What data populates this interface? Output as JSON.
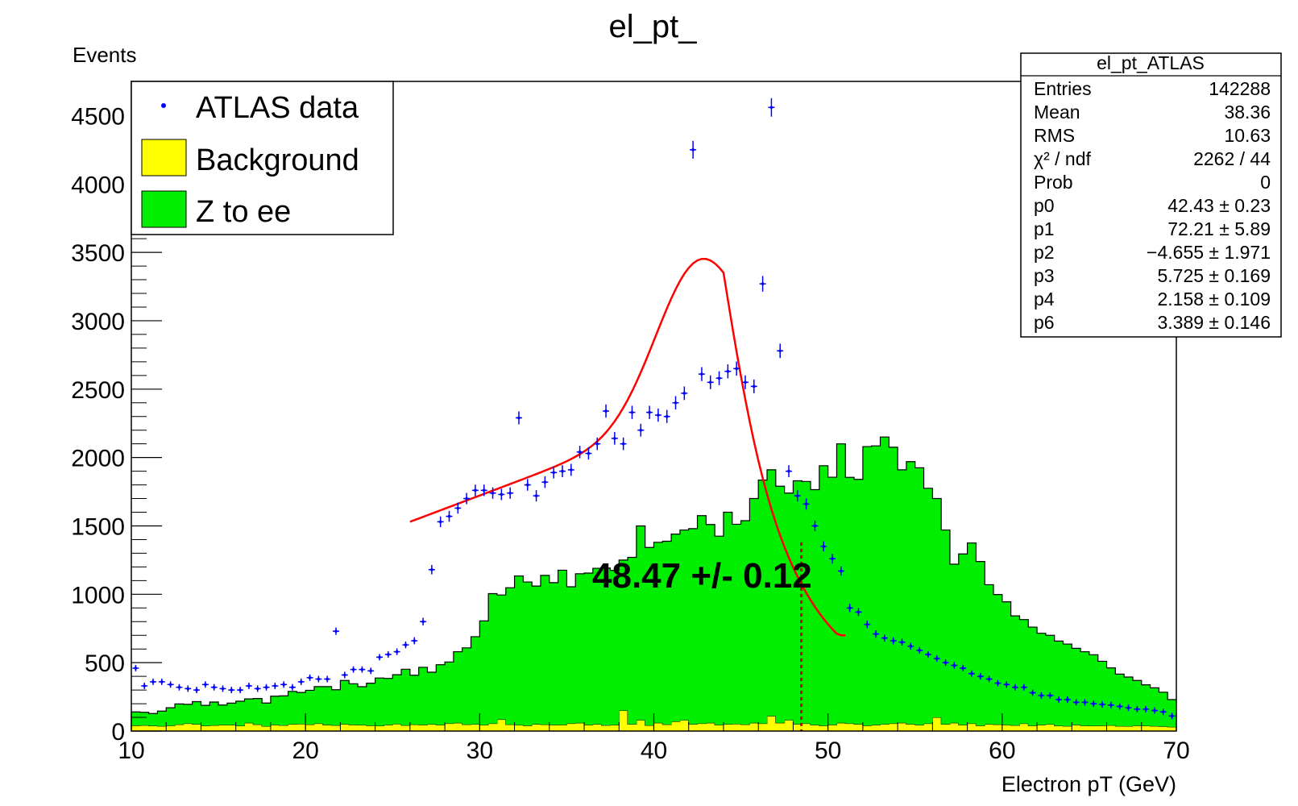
{
  "chart_data": {
    "type": "bar",
    "title": "el_pt_",
    "xlabel": "Electron pT (GeV)",
    "ylabel": "Events",
    "xlim": [
      10,
      70
    ],
    "ylim": [
      0,
      4750
    ],
    "bin_width": 0.5,
    "x_ticks": [
      "10",
      "20",
      "30",
      "40",
      "50",
      "60",
      "70"
    ],
    "y_ticks": [
      "0",
      "500",
      "1000",
      "1500",
      "2000",
      "2500",
      "3000",
      "3500",
      "4000",
      "4500"
    ],
    "legend": {
      "placement": "top-left",
      "entries": [
        {
          "label": "ATLAS data",
          "marker": "point",
          "color": "#0000ff"
        },
        {
          "label": "Background",
          "marker": "box",
          "color": "#ffff00"
        },
        {
          "label": "Z to ee",
          "marker": "box",
          "color": "#00ee00"
        }
      ]
    },
    "annotation": {
      "text": "48.47 +/-  0.12",
      "x": 48.47
    },
    "series": [
      {
        "name": "Background",
        "color": "#ffff00",
        "type": "hist",
        "values": [
          40,
          42,
          38,
          36,
          40,
          48,
          55,
          50,
          38,
          42,
          45,
          44,
          38,
          60,
          48,
          35,
          45,
          42,
          50,
          52,
          48,
          55,
          45,
          42,
          50,
          46,
          44,
          40,
          38,
          45,
          52,
          42,
          48,
          46,
          50,
          45,
          55,
          60,
          48,
          50,
          45,
          55,
          85,
          48,
          44,
          40,
          50,
          48,
          45,
          46,
          55,
          60,
          45,
          50,
          42,
          45,
          150,
          50,
          80,
          42,
          60,
          48,
          70,
          80,
          50,
          55,
          60,
          45,
          50,
          52,
          48,
          60,
          55,
          110,
          60,
          80,
          50,
          55,
          45,
          40,
          46,
          60,
          55,
          50,
          40,
          45,
          50,
          55,
          60,
          50,
          45,
          55,
          100,
          50,
          60,
          45,
          55,
          40,
          50,
          48,
          45,
          42,
          55,
          40,
          45,
          50,
          38,
          36,
          45,
          40,
          38,
          40,
          42,
          36,
          35,
          40,
          38,
          36,
          34,
          30
        ]
      },
      {
        "name": "Z to ee",
        "color": "#00ee00",
        "type": "hist",
        "values": [
          100,
          95,
          90,
          110,
          130,
          150,
          140,
          165,
          150,
          170,
          145,
          160,
          180,
          175,
          190,
          170,
          210,
          215,
          240,
          230,
          250,
          270,
          280,
          260,
          320,
          300,
          280,
          310,
          350,
          340,
          360,
          410,
          360,
          420,
          380,
          440,
          450,
          520,
          560,
          640,
          760,
          950,
          910,
          1000,
          1090,
          1050,
          1010,
          1090,
          1040,
          1130,
          1000,
          1090,
          1110,
          1140,
          1150,
          1130,
          1100,
          1220,
          1420,
          1300,
          1320,
          1340,
          1370,
          1390,
          1430,
          1520,
          1450,
          1380,
          1550,
          1460,
          1490,
          1640,
          1780,
          1800,
          1730,
          1660,
          1780,
          1770,
          1720,
          1900,
          1810,
          2040,
          1800,
          1790,
          2040,
          2040,
          2100,
          2020,
          1850,
          1920,
          1880,
          1720,
          1600,
          1420,
          1160,
          1250,
          1320,
          1200,
          1020,
          950,
          900,
          800,
          760,
          720,
          670,
          650,
          620,
          600,
          560,
          540,
          520,
          470,
          420,
          380,
          360,
          330,
          300,
          280,
          250,
          200
        ]
      },
      {
        "name": "ATLAS data",
        "color": "#0000ff",
        "type": "points",
        "values": [
          460,
          330,
          360,
          360,
          340,
          320,
          310,
          300,
          340,
          320,
          310,
          300,
          300,
          330,
          310,
          320,
          330,
          340,
          320,
          360,
          390,
          380,
          380,
          730,
          410,
          450,
          450,
          440,
          540,
          560,
          580,
          630,
          660,
          800,
          1180,
          1530,
          1570,
          1630,
          1700,
          1760,
          1760,
          1740,
          1730,
          1740,
          2290,
          1800,
          1720,
          1820,
          1890,
          1900,
          1910,
          2040,
          2030,
          2100,
          2340,
          2140,
          2100,
          2330,
          2200,
          2330,
          2310,
          2300,
          2400,
          2470,
          4250,
          2610,
          2550,
          2580,
          2630,
          2650,
          2550,
          2520,
          3270,
          4560,
          2780,
          1900,
          1720,
          1660,
          1500,
          1350,
          1260,
          1170,
          900,
          870,
          780,
          710,
          680,
          660,
          650,
          620,
          590,
          560,
          530,
          500,
          480,
          460,
          420,
          400,
          380,
          350,
          340,
          320,
          320,
          280,
          260,
          260,
          230,
          230,
          210,
          210,
          200,
          195,
          190,
          180,
          170,
          160,
          160,
          150,
          140,
          110
        ]
      }
    ],
    "fit_curve": {
      "color": "#ff0000",
      "x_range": [
        26,
        51
      ]
    },
    "stats_box": {
      "title": "el_pt_ATLAS",
      "rows": [
        {
          "label": "Entries",
          "value": "142288"
        },
        {
          "label": "Mean",
          "value": "38.36"
        },
        {
          "label": "RMS",
          "value": "10.63"
        },
        {
          "label": "χ² / ndf",
          "value": "2262 / 44"
        },
        {
          "label": "Prob",
          "value": "0"
        },
        {
          "label": "p0",
          "value": "42.43 ± 0.23"
        },
        {
          "label": "p1",
          "value": "72.21 ± 5.89"
        },
        {
          "label": "p2",
          "value": "−4.655 ± 1.971"
        },
        {
          "label": "p3",
          "value": "5.725 ± 0.169"
        },
        {
          "label": "p4",
          "value": "2.158 ± 0.109"
        },
        {
          "label": "p6",
          "value": "3.389 ± 0.146"
        }
      ]
    }
  }
}
